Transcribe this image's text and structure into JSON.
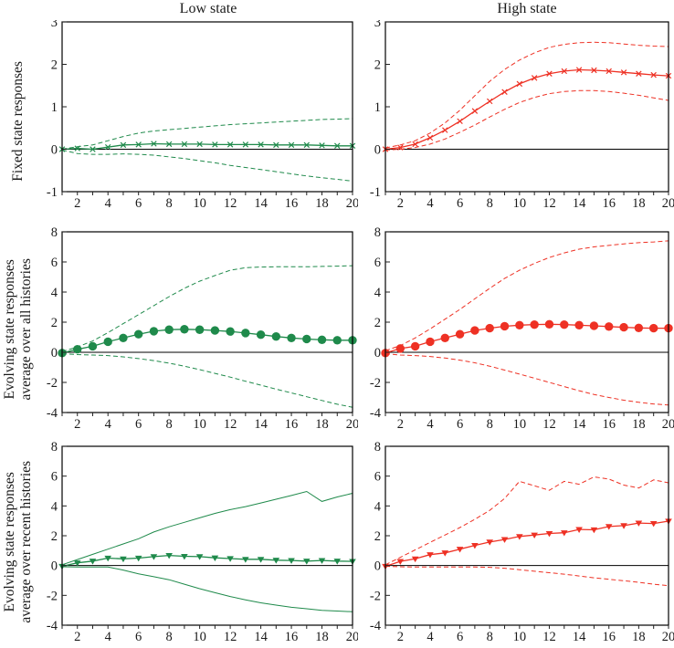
{
  "header": {
    "column_titles": [
      "Low state",
      "High state"
    ]
  },
  "rows": [
    {
      "label_lines": [
        "Fixed state responses",
        ""
      ]
    },
    {
      "label_lines": [
        "Evolving state responses",
        "average over all histories"
      ]
    },
    {
      "label_lines": [
        "Evolving state responses",
        "average over recent histories"
      ]
    }
  ],
  "colors": {
    "green": "#1f8a4b",
    "red": "#ee3124",
    "axis": "#000000",
    "tick": "#222222"
  },
  "chart_data": [
    {
      "type": "line",
      "column": "Low state",
      "row_label": "Fixed state responses",
      "color": "#1f8a4b",
      "x": [
        1,
        2,
        3,
        4,
        5,
        6,
        7,
        8,
        9,
        10,
        11,
        12,
        13,
        14,
        15,
        16,
        17,
        18,
        19,
        20
      ],
      "ylim": [
        -1,
        3
      ],
      "yticks": [
        -1,
        0,
        1,
        2,
        3
      ],
      "xtick_labels": [
        2,
        4,
        6,
        8,
        10,
        12,
        14,
        16,
        18,
        20
      ],
      "series": [
        {
          "name": "upper_band",
          "style": "dashed",
          "values": [
            0.0,
            0.06,
            0.1,
            0.2,
            0.3,
            0.38,
            0.43,
            0.46,
            0.49,
            0.52,
            0.55,
            0.58,
            0.6,
            0.62,
            0.64,
            0.66,
            0.68,
            0.7,
            0.71,
            0.72
          ]
        },
        {
          "name": "response",
          "style": "solid",
          "marker": "x",
          "values": [
            0.0,
            0.02,
            0.0,
            0.05,
            0.1,
            0.11,
            0.13,
            0.12,
            0.12,
            0.12,
            0.11,
            0.11,
            0.11,
            0.11,
            0.1,
            0.1,
            0.1,
            0.09,
            0.08,
            0.08
          ]
        },
        {
          "name": "lower_band",
          "style": "dashed",
          "values": [
            -0.02,
            -0.1,
            -0.12,
            -0.12,
            -0.11,
            -0.12,
            -0.14,
            -0.18,
            -0.22,
            -0.27,
            -0.32,
            -0.38,
            -0.43,
            -0.48,
            -0.53,
            -0.58,
            -0.63,
            -0.67,
            -0.71,
            -0.75
          ]
        }
      ]
    },
    {
      "type": "line",
      "column": "High state",
      "row_label": "Fixed state responses",
      "color": "#ee3124",
      "x": [
        1,
        2,
        3,
        4,
        5,
        6,
        7,
        8,
        9,
        10,
        11,
        12,
        13,
        14,
        15,
        16,
        17,
        18,
        19,
        20
      ],
      "ylim": [
        -1,
        3
      ],
      "yticks": [
        -1,
        0,
        1,
        2,
        3
      ],
      "xtick_labels": [
        2,
        4,
        6,
        8,
        10,
        12,
        14,
        16,
        18,
        20
      ],
      "series": [
        {
          "name": "upper_band",
          "style": "dashed",
          "values": [
            0.03,
            0.1,
            0.2,
            0.38,
            0.62,
            0.92,
            1.26,
            1.6,
            1.88,
            2.1,
            2.27,
            2.4,
            2.47,
            2.51,
            2.52,
            2.51,
            2.48,
            2.45,
            2.43,
            2.42
          ]
        },
        {
          "name": "response",
          "style": "solid",
          "marker": "x",
          "values": [
            0.0,
            0.04,
            0.12,
            0.27,
            0.45,
            0.66,
            0.9,
            1.13,
            1.35,
            1.54,
            1.68,
            1.78,
            1.84,
            1.87,
            1.86,
            1.84,
            1.81,
            1.78,
            1.75,
            1.73
          ]
        },
        {
          "name": "lower_band",
          "style": "dashed",
          "values": [
            -0.02,
            0.0,
            0.04,
            0.12,
            0.24,
            0.4,
            0.57,
            0.76,
            0.94,
            1.1,
            1.22,
            1.31,
            1.36,
            1.38,
            1.38,
            1.36,
            1.32,
            1.27,
            1.21,
            1.15
          ]
        }
      ]
    },
    {
      "type": "line",
      "column": "Low state",
      "row_label": "Evolving state responses average over all histories",
      "color": "#1f8a4b",
      "x": [
        1,
        2,
        3,
        4,
        5,
        6,
        7,
        8,
        9,
        10,
        11,
        12,
        13,
        14,
        15,
        16,
        17,
        18,
        19,
        20
      ],
      "ylim": [
        -4,
        8
      ],
      "yticks": [
        -4,
        -2,
        0,
        2,
        4,
        6,
        8
      ],
      "xtick_labels": [
        2,
        4,
        6,
        8,
        10,
        12,
        14,
        16,
        18,
        20
      ],
      "series": [
        {
          "name": "upper_band",
          "style": "dashed",
          "values": [
            0.05,
            0.35,
            0.75,
            1.3,
            1.9,
            2.5,
            3.1,
            3.7,
            4.25,
            4.72,
            5.1,
            5.45,
            5.62,
            5.66,
            5.68,
            5.68,
            5.68,
            5.7,
            5.72,
            5.75
          ]
        },
        {
          "name": "response",
          "style": "solid",
          "marker": "circle",
          "values": [
            -0.05,
            0.2,
            0.4,
            0.7,
            0.95,
            1.2,
            1.4,
            1.5,
            1.53,
            1.5,
            1.45,
            1.38,
            1.28,
            1.17,
            1.05,
            0.95,
            0.88,
            0.83,
            0.8,
            0.8
          ]
        },
        {
          "name": "lower_band",
          "style": "dashed",
          "values": [
            -0.1,
            -0.15,
            -0.18,
            -0.22,
            -0.3,
            -0.42,
            -0.55,
            -0.72,
            -0.92,
            -1.15,
            -1.4,
            -1.65,
            -1.92,
            -2.18,
            -2.45,
            -2.7,
            -2.95,
            -3.2,
            -3.45,
            -3.65
          ]
        }
      ]
    },
    {
      "type": "line",
      "column": "High state",
      "row_label": "Evolving state responses average over all histories",
      "color": "#ee3124",
      "x": [
        1,
        2,
        3,
        4,
        5,
        6,
        7,
        8,
        9,
        10,
        11,
        12,
        13,
        14,
        15,
        16,
        17,
        18,
        19,
        20
      ],
      "ylim": [
        -4,
        8
      ],
      "yticks": [
        -4,
        -2,
        0,
        2,
        4,
        6,
        8
      ],
      "xtick_labels": [
        2,
        4,
        6,
        8,
        10,
        12,
        14,
        16,
        18,
        20
      ],
      "series": [
        {
          "name": "upper_band",
          "style": "dashed",
          "values": [
            0.1,
            0.45,
            0.95,
            1.55,
            2.2,
            2.85,
            3.55,
            4.25,
            4.9,
            5.45,
            5.9,
            6.3,
            6.6,
            6.85,
            7.0,
            7.1,
            7.2,
            7.28,
            7.33,
            7.4
          ]
        },
        {
          "name": "response",
          "style": "solid",
          "marker": "circle",
          "values": [
            -0.05,
            0.25,
            0.4,
            0.7,
            0.95,
            1.2,
            1.45,
            1.6,
            1.73,
            1.8,
            1.84,
            1.86,
            1.84,
            1.8,
            1.76,
            1.71,
            1.66,
            1.62,
            1.6,
            1.6
          ]
        },
        {
          "name": "lower_band",
          "style": "dashed",
          "values": [
            -0.1,
            -0.18,
            -0.22,
            -0.28,
            -0.38,
            -0.52,
            -0.7,
            -0.92,
            -1.18,
            -1.45,
            -1.72,
            -2.0,
            -2.28,
            -2.55,
            -2.8,
            -3.0,
            -3.18,
            -3.32,
            -3.43,
            -3.5
          ]
        }
      ]
    },
    {
      "type": "line",
      "column": "Low state",
      "row_label": "Evolving state responses average over recent histories",
      "color": "#1f8a4b",
      "x": [
        1,
        2,
        3,
        4,
        5,
        6,
        7,
        8,
        9,
        10,
        11,
        12,
        13,
        14,
        15,
        16,
        17,
        18,
        19,
        20
      ],
      "ylim": [
        -4,
        8
      ],
      "yticks": [
        -4,
        -2,
        0,
        2,
        4,
        6,
        8
      ],
      "xtick_labels": [
        2,
        4,
        6,
        8,
        10,
        12,
        14,
        16,
        18,
        20
      ],
      "series": [
        {
          "name": "upper_band",
          "style": "solid",
          "values": [
            0.05,
            0.4,
            0.75,
            1.1,
            1.45,
            1.8,
            2.25,
            2.6,
            2.9,
            3.2,
            3.5,
            3.75,
            3.95,
            4.2,
            4.45,
            4.7,
            4.97,
            4.3,
            4.6,
            4.85
          ]
        },
        {
          "name": "response",
          "style": "solid",
          "marker": "triangle-down",
          "values": [
            -0.05,
            0.18,
            0.3,
            0.5,
            0.45,
            0.5,
            0.6,
            0.68,
            0.62,
            0.6,
            0.52,
            0.47,
            0.42,
            0.42,
            0.36,
            0.34,
            0.3,
            0.34,
            0.3,
            0.28
          ]
        },
        {
          "name": "lower_band",
          "style": "solid",
          "values": [
            -0.08,
            -0.1,
            -0.1,
            -0.1,
            -0.3,
            -0.55,
            -0.75,
            -0.95,
            -1.25,
            -1.55,
            -1.82,
            -2.08,
            -2.3,
            -2.5,
            -2.65,
            -2.8,
            -2.9,
            -3.0,
            -3.05,
            -3.1
          ]
        }
      ]
    },
    {
      "type": "line",
      "column": "High state",
      "row_label": "Evolving state responses average over recent histories",
      "color": "#ee3124",
      "x": [
        1,
        2,
        3,
        4,
        5,
        6,
        7,
        8,
        9,
        10,
        11,
        12,
        13,
        14,
        15,
        16,
        17,
        18,
        19,
        20
      ],
      "ylim": [
        -4,
        8
      ],
      "yticks": [
        -4,
        -2,
        0,
        2,
        4,
        6,
        8
      ],
      "xtick_labels": [
        2,
        4,
        6,
        8,
        10,
        12,
        14,
        16,
        18,
        20
      ],
      "series": [
        {
          "name": "upper_band",
          "style": "dashed",
          "values": [
            0.05,
            0.55,
            1.05,
            1.55,
            2.05,
            2.55,
            3.1,
            3.7,
            4.5,
            5.65,
            5.35,
            5.05,
            5.65,
            5.45,
            5.95,
            5.8,
            5.4,
            5.2,
            5.75,
            5.55
          ]
        },
        {
          "name": "response",
          "style": "solid",
          "marker": "triangle-down",
          "values": [
            -0.05,
            0.28,
            0.45,
            0.73,
            0.85,
            1.1,
            1.35,
            1.58,
            1.75,
            1.95,
            2.05,
            2.15,
            2.2,
            2.42,
            2.4,
            2.62,
            2.68,
            2.85,
            2.82,
            2.98
          ]
        },
        {
          "name": "lower_band",
          "style": "dashed",
          "values": [
            -0.05,
            -0.08,
            -0.1,
            -0.1,
            -0.1,
            -0.1,
            -0.1,
            -0.12,
            -0.18,
            -0.28,
            -0.38,
            -0.48,
            -0.58,
            -0.7,
            -0.82,
            -0.92,
            -1.02,
            -1.12,
            -1.25,
            -1.35
          ]
        }
      ]
    }
  ]
}
